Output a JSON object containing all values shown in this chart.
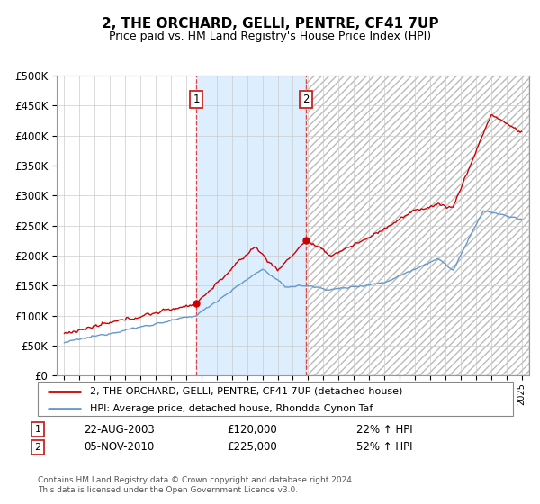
{
  "title": "2, THE ORCHARD, GELLI, PENTRE, CF41 7UP",
  "subtitle": "Price paid vs. HM Land Registry's House Price Index (HPI)",
  "legend_line1": "2, THE ORCHARD, GELLI, PENTRE, CF41 7UP (detached house)",
  "legend_line2": "HPI: Average price, detached house, Rhondda Cynon Taf",
  "annotation1_date": "22-AUG-2003",
  "annotation1_price": "£120,000",
  "annotation1_hpi": "22% ↑ HPI",
  "annotation1_year": 2003.65,
  "annotation1_value": 120000,
  "annotation2_date": "05-NOV-2010",
  "annotation2_price": "£225,000",
  "annotation2_hpi": "52% ↑ HPI",
  "annotation2_year": 2010.85,
  "annotation2_value": 225000,
  "footnote1": "Contains HM Land Registry data © Crown copyright and database right 2024.",
  "footnote2": "This data is licensed under the Open Government Licence v3.0.",
  "hpi_color": "#6699cc",
  "price_color": "#cc0000",
  "shade_color": "#ddeeff",
  "ylim": [
    0,
    500000
  ],
  "yticks": [
    0,
    50000,
    100000,
    150000,
    200000,
    250000,
    300000,
    350000,
    400000,
    450000,
    500000
  ],
  "xmin": 1994.5,
  "xmax": 2025.5
}
